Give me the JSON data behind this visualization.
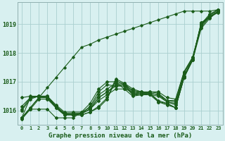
{
  "xlabel": "Graphe pression niveau de la mer (hPa)",
  "background_color": "#d8f0f0",
  "grid_color": "#aacfcf",
  "line_color": "#1a5c1a",
  "xlim": [
    -0.5,
    23.5
  ],
  "ylim": [
    1015.5,
    1019.75
  ],
  "yticks": [
    1016,
    1017,
    1018,
    1019
  ],
  "xticks": [
    0,
    1,
    2,
    3,
    4,
    5,
    6,
    7,
    8,
    9,
    10,
    11,
    12,
    13,
    14,
    15,
    16,
    17,
    18,
    19,
    20,
    21,
    22,
    23
  ],
  "lines": [
    [
      1015.7,
      1016.05,
      1016.4,
      1016.4,
      1016.1,
      1015.85,
      1015.85,
      1015.85,
      1015.95,
      1016.1,
      1016.4,
      1017.05,
      1016.9,
      1016.7,
      1016.65,
      1016.6,
      1016.3,
      1016.25,
      1016.1,
      1017.15,
      1017.8,
      1019.05,
      1019.25,
      1019.4
    ],
    [
      1016.0,
      1016.4,
      1016.5,
      1016.45,
      1016.15,
      1015.9,
      1015.85,
      1015.9,
      1016.05,
      1016.35,
      1016.55,
      1016.75,
      1016.75,
      1016.5,
      1016.55,
      1016.55,
      1016.5,
      1016.3,
      1016.25,
      1017.2,
      1017.75,
      1018.85,
      1019.2,
      1019.45
    ],
    [
      1016.15,
      1016.45,
      1016.5,
      1016.45,
      1016.15,
      1015.9,
      1015.9,
      1015.9,
      1016.05,
      1016.45,
      1016.65,
      1016.85,
      1016.9,
      1016.55,
      1016.6,
      1016.6,
      1016.55,
      1016.35,
      1016.3,
      1017.3,
      1017.8,
      1018.95,
      1019.3,
      1019.5
    ],
    [
      1016.05,
      1016.45,
      1016.5,
      1016.45,
      1016.1,
      1015.85,
      1015.87,
      1015.9,
      1016.15,
      1016.65,
      1016.9,
      1016.85,
      1016.85,
      1016.55,
      1016.55,
      1016.6,
      1016.55,
      1016.3,
      1016.2,
      1017.2,
      1017.8,
      1018.9,
      1019.25,
      1019.45
    ],
    [
      1015.75,
      1016.1,
      1016.45,
      1016.45,
      1016.15,
      1015.87,
      1015.85,
      1015.85,
      1015.95,
      1016.15,
      1016.45,
      1017.1,
      1016.95,
      1016.75,
      1016.65,
      1016.6,
      1016.35,
      1016.25,
      1016.1,
      1017.15,
      1017.75,
      1019.0,
      1019.25,
      1019.45
    ],
    [
      1016.45,
      1016.5,
      1016.5,
      1016.5,
      1016.2,
      1015.95,
      1015.95,
      1015.95,
      1016.1,
      1016.55,
      1016.75,
      1016.95,
      1016.95,
      1016.65,
      1016.65,
      1016.65,
      1016.65,
      1016.45,
      1016.4,
      1017.35,
      1017.85,
      1019.0,
      1019.35,
      1019.5
    ],
    [
      1015.75,
      1016.45,
      1016.5,
      1016.5,
      1016.15,
      1015.9,
      1015.9,
      1015.9,
      1016.05,
      1016.45,
      1016.65,
      1016.9,
      1016.9,
      1016.6,
      1016.6,
      1016.65,
      1016.6,
      1016.35,
      1016.35,
      1017.35,
      1017.85,
      1018.95,
      1019.3,
      1019.5
    ],
    [
      1015.75,
      1016.05,
      1016.05,
      1016.05,
      1015.75,
      1015.75,
      1015.75,
      1015.95,
      1016.25,
      1016.75,
      1017.0,
      1017.0,
      1016.75,
      1016.65,
      1016.6,
      1016.55,
      1016.3,
      1016.2,
      1016.1,
      1017.15,
      1017.75,
      1019.05,
      1019.25,
      1019.45
    ]
  ],
  "diagonal_line": [
    1015.75,
    1016.1,
    1016.45,
    1016.8,
    1017.15,
    1017.5,
    1017.85,
    1018.2,
    1018.3,
    1018.45,
    1018.55,
    1018.65,
    1018.75,
    1018.85,
    1018.95,
    1019.05,
    1019.15,
    1019.25,
    1019.35,
    1019.45,
    1019.45,
    1019.45,
    1019.45,
    1019.5
  ]
}
